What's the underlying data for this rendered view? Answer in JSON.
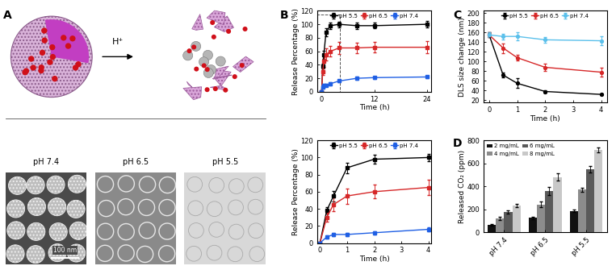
{
  "diagram": {
    "panel_label": "A",
    "arrow_label": "H⁺",
    "images": [
      "pH 7.4",
      "pH 6.5",
      "pH 5.5"
    ],
    "scale_bar": "100 nm"
  },
  "chart_data": [
    {
      "panel_label": "B",
      "type": "line",
      "xlabel": "Time (h)",
      "ylabel": "Release Percentage (%)",
      "x": [
        0,
        0.25,
        0.5,
        1,
        2,
        4,
        8,
        12,
        24
      ],
      "series": [
        {
          "name": "pH 5.5",
          "color": "#000000",
          "marker": "square",
          "values": [
            0,
            38,
            55,
            88,
            98,
            100,
            98,
            98,
            100
          ],
          "error": [
            0,
            4,
            6,
            6,
            5,
            4,
            5,
            4,
            5
          ]
        },
        {
          "name": "pH 6.5",
          "color": "#d62728",
          "marker": "square",
          "values": [
            0,
            30,
            45,
            55,
            60,
            65,
            65,
            66,
            66
          ],
          "error": [
            0,
            5,
            8,
            9,
            8,
            9,
            8,
            8,
            9
          ]
        },
        {
          "name": "pH 7.4",
          "color": "#1f5fe4",
          "marker": "square",
          "values": [
            0,
            7,
            10,
            10,
            12,
            16,
            20,
            21,
            22
          ],
          "error": [
            0,
            2,
            2,
            2,
            2,
            2,
            2,
            2,
            2
          ]
        }
      ],
      "xlim": [
        -1,
        25
      ],
      "xticks": [
        0,
        12,
        24
      ],
      "ylim": [
        0,
        120
      ],
      "yticks": [
        0,
        20,
        40,
        60,
        80,
        100,
        120
      ],
      "legend": "upper center"
    },
    {
      "type": "line",
      "xlabel": "Time (h)",
      "ylabel": "Release Percentage (%)",
      "x": [
        0,
        0.25,
        0.5,
        1,
        2,
        4
      ],
      "series": [
        {
          "name": "pH 5.5",
          "color": "#000000",
          "marker": "square",
          "values": [
            0,
            38,
            55,
            88,
            98,
            100
          ],
          "error": [
            0,
            4,
            6,
            6,
            5,
            4
          ]
        },
        {
          "name": "pH 6.5",
          "color": "#d62728",
          "marker": "square",
          "values": [
            0,
            30,
            45,
            55,
            60,
            65
          ],
          "error": [
            0,
            5,
            8,
            9,
            8,
            9
          ]
        },
        {
          "name": "pH 7.4",
          "color": "#1f5fe4",
          "marker": "square",
          "values": [
            0,
            7,
            10,
            10,
            12,
            16
          ],
          "error": [
            0,
            2,
            2,
            2,
            2,
            2
          ]
        }
      ],
      "xlim": [
        -0.1,
        4.1
      ],
      "xticks": [
        0,
        1,
        2,
        3,
        4
      ],
      "ylim": [
        0,
        120
      ],
      "yticks": [
        0,
        20,
        40,
        60,
        80,
        100,
        120
      ],
      "legend": "upper center"
    },
    {
      "panel_label": "C",
      "type": "line",
      "xlabel": "Time (h)",
      "ylabel": "DLS size change (nm)",
      "x": [
        0,
        0.5,
        1,
        2,
        4
      ],
      "series": [
        {
          "name": "pH 5.5",
          "color": "#000000",
          "marker": "circle",
          "values": [
            155,
            72,
            55,
            38,
            32
          ],
          "error": [
            5,
            5,
            10,
            2,
            2
          ]
        },
        {
          "name": "pH 6.5",
          "color": "#d62728",
          "marker": "circle",
          "values": [
            155,
            128,
            108,
            88,
            78
          ],
          "error": [
            5,
            10,
            6,
            8,
            9
          ]
        },
        {
          "name": "pH 7.4",
          "color": "#5bc0eb",
          "marker": "circle",
          "values": [
            155,
            152,
            152,
            145,
            143
          ],
          "error": [
            5,
            6,
            8,
            6,
            9
          ]
        }
      ],
      "xlim": [
        -0.2,
        4.2
      ],
      "xticks": [
        0,
        1,
        2,
        3,
        4
      ],
      "ylim": [
        15,
        205
      ],
      "yticks": [
        20,
        40,
        60,
        80,
        100,
        120,
        140,
        160,
        180,
        200
      ],
      "legend": "upper center"
    },
    {
      "panel_label": "D",
      "type": "bar",
      "ylabel": "Released CO₂ (ppm)",
      "categories": [
        "pH 7.4",
        "pH 6.5",
        "pH 5.5"
      ],
      "series": [
        {
          "name": "2 mg/mL",
          "color": "#111111",
          "values": [
            65,
            125,
            185
          ],
          "error": [
            8,
            10,
            12
          ]
        },
        {
          "name": "4 mg/mL",
          "color": "#8c8c8c",
          "values": [
            120,
            240,
            370
          ],
          "error": [
            15,
            25,
            15
          ]
        },
        {
          "name": "6 mg/mL",
          "color": "#5a5a5a",
          "values": [
            175,
            360,
            550
          ],
          "error": [
            12,
            35,
            30
          ]
        },
        {
          "name": "8 mg/mL",
          "color": "#c8c8c8",
          "values": [
            235,
            480,
            715
          ],
          "error": [
            15,
            30,
            20
          ]
        }
      ],
      "ylim": [
        0,
        800
      ],
      "yticks": [
        0,
        200,
        400,
        600,
        800
      ],
      "legend": "upper left"
    }
  ]
}
